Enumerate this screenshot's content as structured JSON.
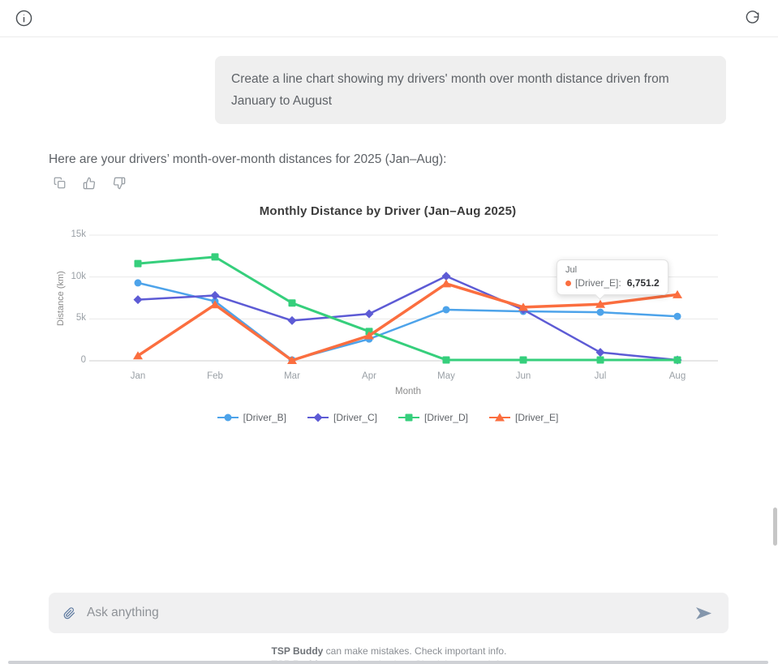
{
  "header": {
    "info_icon": "info",
    "refresh_icon": "refresh"
  },
  "user_message": "Create a line chart showing my drivers' month over month distance driven from January to August",
  "assistant": {
    "intro": "Here are your drivers’ month-over-month distances for 2025 (Jan–Aug):",
    "actions": [
      "copy",
      "thumbs-up",
      "thumbs-down"
    ]
  },
  "chart_data": {
    "type": "line",
    "title": "Monthly Distance by Driver (Jan–Aug 2025)",
    "xlabel": "Month",
    "ylabel": "Distance (km)",
    "categories": [
      "Jan",
      "Feb",
      "Mar",
      "Apr",
      "May",
      "Jun",
      "Jul",
      "Aug"
    ],
    "ylim": [
      0,
      15000
    ],
    "y_ticks": [
      {
        "label": "15k",
        "value": 15000
      },
      {
        "label": "10k",
        "value": 10000
      },
      {
        "label": "5k",
        "value": 5000
      },
      {
        "label": "0",
        "value": 0
      }
    ],
    "grid": true,
    "legend_position": "bottom",
    "series": [
      {
        "name": "[Driver_B]",
        "color": "#4da3ea",
        "marker": "circle",
        "values": [
          9300,
          7100,
          100,
          2600,
          6100,
          5900,
          5800,
          5300
        ]
      },
      {
        "name": "[Driver_C]",
        "color": "#5d5bd5",
        "marker": "diamond",
        "values": [
          7300,
          7800,
          4800,
          5600,
          10100,
          6100,
          1000,
          100
        ]
      },
      {
        "name": "[Driver_D]",
        "color": "#36cf7c",
        "marker": "square",
        "values": [
          11600,
          12400,
          6900,
          3500,
          100,
          100,
          100,
          100
        ]
      },
      {
        "name": "[Driver_E]",
        "color": "#fb6e3f",
        "marker": "triangle",
        "values": [
          600,
          6700,
          50,
          3000,
          9200,
          6400,
          6751.2,
          7900
        ]
      }
    ],
    "tooltip": {
      "month": "Jul",
      "series": "[Driver_E]",
      "value": "6,751.2",
      "color": "#fb6e3f"
    }
  },
  "composer": {
    "placeholder": "Ask anything"
  },
  "footer": {
    "brand": "TSP Buddy",
    "disclaimer": " can make mistakes. Check important info."
  }
}
